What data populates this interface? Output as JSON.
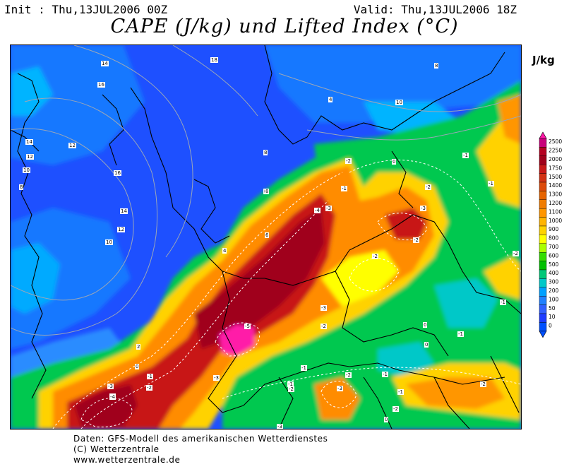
{
  "header": {
    "init": "Init : Thu,13JUL2006 00Z",
    "valid": "Valid: Thu,13JUL2006 18Z",
    "title": "CAPE (J/kg) und Lifted Index (°C)"
  },
  "legend": {
    "unit": "J/kg",
    "levels": [
      "2500",
      "2250",
      "2000",
      "1750",
      "1500",
      "1400",
      "1300",
      "1200",
      "1100",
      "1000",
      "900",
      "800",
      "700",
      "600",
      "500",
      "400",
      "300",
      "200",
      "100",
      "50",
      "10",
      "0"
    ],
    "colors": [
      "#ff1aa8",
      "#c8007a",
      "#b40020",
      "#a0001a",
      "#c81818",
      "#d23214",
      "#dc4a0a",
      "#e66400",
      "#f07c00",
      "#ff9600",
      "#ffb400",
      "#ffd200",
      "#ffff00",
      "#aaff00",
      "#33dd00",
      "#00c000",
      "#00c878",
      "#00c8c8",
      "#00a0ff",
      "#2080ff",
      "#3060ff",
      "#1e3cff",
      "#0050ff"
    ]
  },
  "map": {
    "background_colors": {
      "deep_blue": "#1e50ff",
      "light_blue": "#1478ff",
      "cyan": "#00c8ff",
      "green": "#00c850",
      "yellow": "#ffd200",
      "orange": "#ff8c00",
      "red": "#c81818",
      "dark_red": "#a0001a",
      "magenta": "#ff1aa8"
    },
    "cape_contour_labels": [
      "18",
      "14",
      "16",
      "14",
      "12",
      "16",
      "12",
      "10",
      "8",
      "14",
      "12",
      "10",
      "8",
      "6",
      "2",
      "0",
      "-1",
      "-2",
      "-3",
      "-4",
      "-5",
      "4",
      "8",
      "8",
      "10",
      "8",
      "4",
      "0",
      "-1",
      "-2",
      "-3",
      "-4",
      "-2",
      "-3",
      "-1",
      "-2",
      "-1",
      "-2",
      "-1",
      "-1",
      "0",
      "-1",
      "0",
      "-2",
      "-1",
      "-2",
      "-3",
      "-1",
      "-2",
      "-1",
      "0",
      "-1",
      "-2",
      "-3",
      "-4",
      "-3",
      "-2",
      "-3",
      "-2"
    ]
  },
  "credits": {
    "line1": "Daten: GFS-Modell des amerikanischen Wetterdienstes",
    "line2": "(C) Wetterzentrale",
    "line3": "www.wetterzentrale.de"
  }
}
